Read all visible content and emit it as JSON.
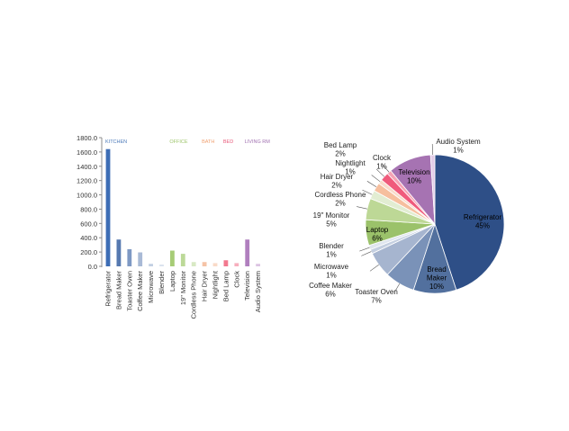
{
  "chart_data": [
    {
      "type": "bar",
      "ylim": [
        0,
        1800
      ],
      "yticks": [
        0,
        200,
        400,
        600,
        800,
        1000,
        1200,
        1400,
        1600,
        1800
      ],
      "ytick_labels": [
        "0.0",
        "200.0",
        "400.0",
        "600.0",
        "800.0",
        "1000.0",
        "1200.0",
        "1400.0",
        "1600.0",
        "1800.0"
      ],
      "grid": false,
      "groups": [
        {
          "label": "KITCHEN",
          "color": "#4a78b8",
          "start": 0
        },
        {
          "label": "OFFICE",
          "color": "#9dc46a",
          "start": 6
        },
        {
          "label": "BATH",
          "color": "#f0a070",
          "start": 9
        },
        {
          "label": "BED",
          "color": "#e85a7a",
          "start": 11
        },
        {
          "label": "LIVING RM",
          "color": "#a070b0",
          "start": 13
        }
      ],
      "categories": [
        "Refrigerator",
        "Bread Maker",
        "Toaster Oven",
        "Coffee Maker",
        "Microwave",
        "Blender",
        "Laptop",
        "19\" Monitor",
        "Cordless Phone",
        "Hair Dryer",
        "Nightlight",
        "Bed Lamp",
        "Clock",
        "Television",
        "Audio System"
      ],
      "values": [
        1640,
        375,
        240,
        195,
        35,
        25,
        220,
        175,
        60,
        60,
        45,
        85,
        45,
        375,
        35
      ],
      "colors": [
        "#3d6db5",
        "#5679b0",
        "#7e99c4",
        "#a9bad6",
        "#c2cfe2",
        "#dbe3ee",
        "#a6cc76",
        "#bcd998",
        "#d8e9c4",
        "#f5c3a6",
        "#f9dac8",
        "#f2798f",
        "#f7aebd",
        "#b07fbe",
        "#dcc4e2"
      ]
    },
    {
      "type": "pie",
      "slices": [
        {
          "label": "Refrigerator",
          "percent_label": "45%",
          "value": 45,
          "color": "#2e4f87"
        },
        {
          "label": "Bread\nMaker",
          "percent_label": "10%",
          "value": 10,
          "color": "#52709e"
        },
        {
          "label": "Toaster Oven",
          "percent_label": "7%",
          "value": 7,
          "color": "#7a92b8"
        },
        {
          "label": "Coffee Maker",
          "percent_label": "6%",
          "value": 6,
          "color": "#a6b5cf"
        },
        {
          "label": "Microwave",
          "percent_label": "1%",
          "value": 1,
          "color": "#c4cfe0"
        },
        {
          "label": "Blender",
          "percent_label": "1%",
          "value": 1,
          "color": "#e0e6ef"
        },
        {
          "label": "Laptop",
          "percent_label": "6%",
          "value": 6,
          "color": "#9bc26a"
        },
        {
          "label": "19\" Monitor",
          "percent_label": "5%",
          "value": 5,
          "color": "#bdd896"
        },
        {
          "label": "Cordless Phone",
          "percent_label": "2%",
          "value": 2,
          "color": "#e2edd2"
        },
        {
          "label": "Hair Dryer",
          "percent_label": "2%",
          "value": 2,
          "color": "#f6bf9e"
        },
        {
          "label": "Nightlight",
          "percent_label": "1%",
          "value": 1,
          "color": "#f9dccb"
        },
        {
          "label": "Bed Lamp",
          "percent_label": "2%",
          "value": 2,
          "color": "#f05b7c"
        },
        {
          "label": "Clock",
          "percent_label": "1%",
          "value": 1,
          "color": "#f5a3b5"
        },
        {
          "label": "Television",
          "percent_label": "10%",
          "value": 10,
          "color": "#a673b2"
        },
        {
          "label": "Audio System",
          "percent_label": "1%",
          "value": 1,
          "color": "#e3cde8"
        }
      ]
    }
  ]
}
